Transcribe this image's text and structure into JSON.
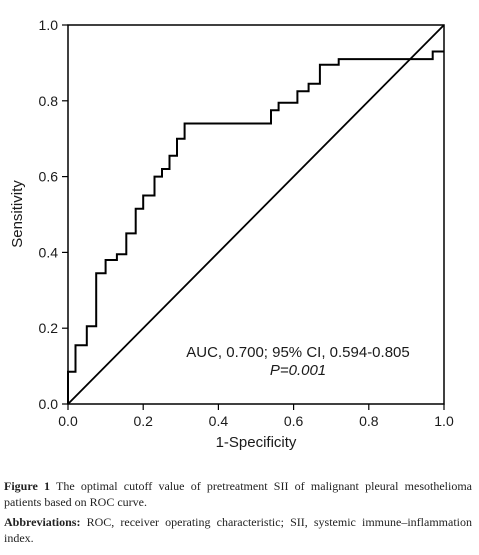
{
  "chart_data": {
    "type": "line",
    "xlabel": "1-Specificity",
    "ylabel": "Sensitivity",
    "xlim": [
      0,
      1
    ],
    "ylim": [
      0,
      1
    ],
    "x_ticks": [
      "0.0",
      "0.2",
      "0.4",
      "0.6",
      "0.8",
      "1.0"
    ],
    "y_ticks": [
      "0.0",
      "0.2",
      "0.4",
      "0.6",
      "0.8",
      "1.0"
    ],
    "grid": false,
    "legend": "none",
    "annotation": {
      "line1": "AUC, 0.700; 95% CI, 0.594-0.805",
      "line2": "P=0.001"
    },
    "series": [
      {
        "style": "step",
        "x": [
          0,
          0,
          0.02,
          0.02,
          0.05,
          0.05,
          0.075,
          0.075,
          0.1,
          0.1,
          0.13,
          0.13,
          0.155,
          0.155,
          0.18,
          0.18,
          0.2,
          0.2,
          0.23,
          0.23,
          0.25,
          0.25,
          0.27,
          0.27,
          0.29,
          0.29,
          0.31,
          0.31,
          0.36,
          0.36,
          0.54,
          0.54,
          0.56,
          0.56,
          0.61,
          0.61,
          0.64,
          0.64,
          0.67,
          0.67,
          0.72,
          0.72,
          0.8,
          0.8,
          0.97,
          0.97,
          1.0
        ],
        "y": [
          0,
          0.085,
          0.085,
          0.155,
          0.155,
          0.205,
          0.205,
          0.345,
          0.345,
          0.38,
          0.38,
          0.395,
          0.395,
          0.45,
          0.45,
          0.515,
          0.515,
          0.55,
          0.55,
          0.6,
          0.6,
          0.62,
          0.62,
          0.655,
          0.655,
          0.7,
          0.7,
          0.74,
          0.74,
          0.74,
          0.74,
          0.775,
          0.775,
          0.795,
          0.795,
          0.825,
          0.825,
          0.845,
          0.845,
          0.895,
          0.895,
          0.91,
          0.91,
          0.91,
          0.91,
          0.93,
          0.93
        ]
      },
      {
        "style": "reference",
        "x": [
          0,
          1
        ],
        "y": [
          0,
          1
        ]
      }
    ]
  },
  "caption": {
    "figure_label": "Figure 1",
    "figure_text": "The optimal cutoff value of pretreatment SII of malignant pleural mesothelioma patients based on ROC curve.",
    "abbrev_label": "Abbreviations:",
    "abbrev_text": "ROC, receiver operating characteristic; SII, systemic immune–inflammation index."
  }
}
